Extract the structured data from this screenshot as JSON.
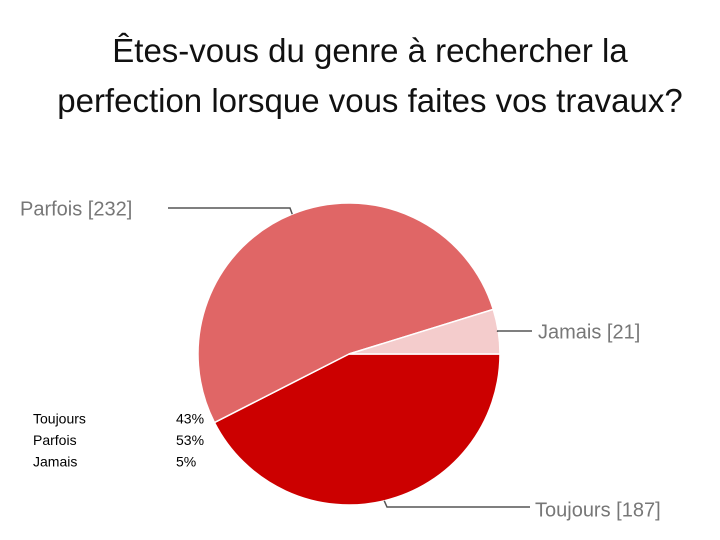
{
  "chart_data": {
    "type": "pie",
    "title": "Êtes-vous du genre à rechercher la perfection lorsque vous faites vos travaux?",
    "categories": [
      "Toujours",
      "Parfois",
      "Jamais"
    ],
    "values": [
      187,
      232,
      21
    ],
    "value_labels": [
      "Toujours [187]",
      "Parfois [232]",
      "Jamais [21]"
    ],
    "colors": [
      "#cc0000",
      "#e06666",
      "#f4cccc"
    ]
  },
  "table": {
    "rows": [
      [
        "Toujours",
        "43%"
      ],
      [
        "Parfois",
        "53%"
      ],
      [
        "Jamais",
        "5%"
      ]
    ]
  }
}
